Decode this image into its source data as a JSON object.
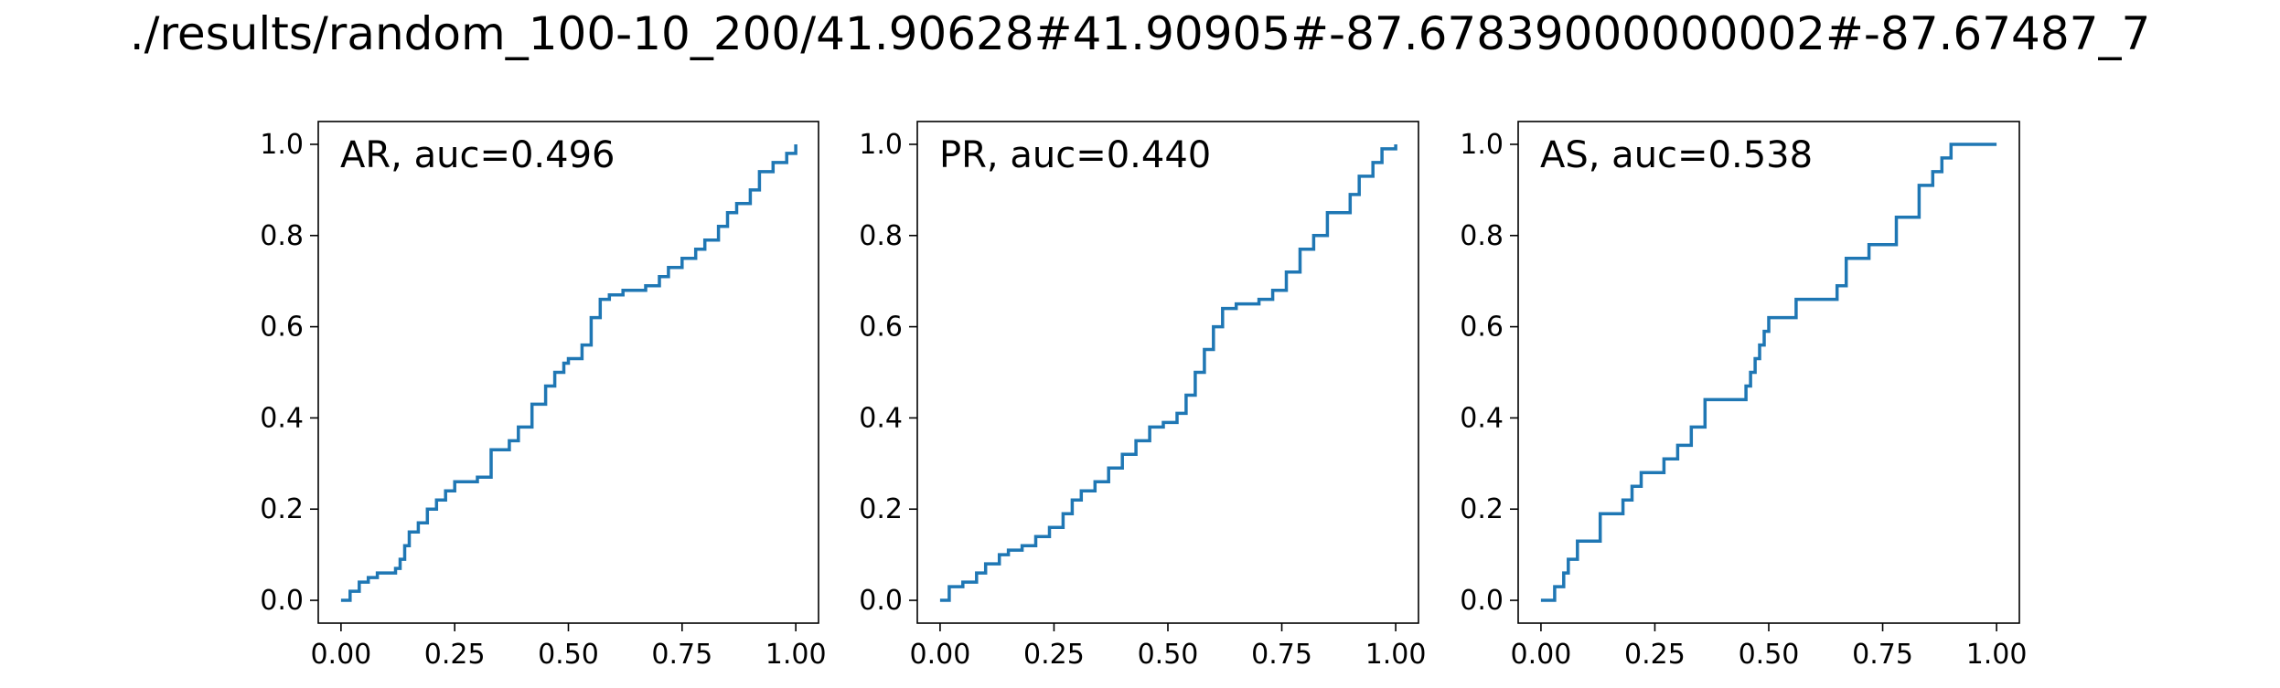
{
  "figure": {
    "title": "./results/random_100-10_200/41.90628#41.90905#-87.67839000000002#-87.67487_7"
  },
  "chart_data": [
    {
      "type": "line",
      "title": "AR, auc=0.496",
      "xlabel": "",
      "ylabel": "",
      "xlim": [
        -0.05,
        1.05
      ],
      "ylim": [
        -0.05,
        1.05
      ],
      "xticks": [
        "0.00",
        "0.25",
        "0.50",
        "0.75",
        "1.00"
      ],
      "yticks": [
        "0.0",
        "0.2",
        "0.4",
        "0.6",
        "0.8",
        "1.0"
      ],
      "grid": false,
      "color": "#1f77b4",
      "step": true,
      "series": [
        {
          "x": [
            0.0,
            0.02,
            0.04,
            0.06,
            0.08,
            0.1,
            0.12,
            0.13,
            0.14,
            0.15,
            0.17,
            0.19,
            0.21,
            0.23,
            0.25,
            0.3,
            0.33,
            0.37,
            0.39,
            0.42,
            0.45,
            0.47,
            0.49,
            0.5,
            0.53,
            0.55,
            0.57,
            0.59,
            0.62,
            0.67,
            0.7,
            0.72,
            0.75,
            0.78,
            0.8,
            0.83,
            0.85,
            0.87,
            0.9,
            0.92,
            0.95,
            0.98,
            1.0
          ],
          "y": [
            0.0,
            0.02,
            0.04,
            0.05,
            0.06,
            0.06,
            0.07,
            0.09,
            0.12,
            0.15,
            0.17,
            0.2,
            0.22,
            0.24,
            0.26,
            0.27,
            0.33,
            0.35,
            0.38,
            0.43,
            0.47,
            0.5,
            0.52,
            0.53,
            0.56,
            0.62,
            0.66,
            0.67,
            0.68,
            0.69,
            0.71,
            0.73,
            0.75,
            0.77,
            0.79,
            0.82,
            0.85,
            0.87,
            0.9,
            0.94,
            0.96,
            0.98,
            1.0
          ]
        }
      ]
    },
    {
      "type": "line",
      "title": "PR, auc=0.440",
      "xlabel": "",
      "ylabel": "",
      "xlim": [
        -0.05,
        1.05
      ],
      "ylim": [
        -0.05,
        1.05
      ],
      "xticks": [
        "0.00",
        "0.25",
        "0.50",
        "0.75",
        "1.00"
      ],
      "yticks": [
        "0.0",
        "0.2",
        "0.4",
        "0.6",
        "0.8",
        "1.0"
      ],
      "grid": false,
      "color": "#1f77b4",
      "step": true,
      "series": [
        {
          "x": [
            0.0,
            0.02,
            0.05,
            0.08,
            0.1,
            0.13,
            0.15,
            0.18,
            0.21,
            0.24,
            0.27,
            0.29,
            0.31,
            0.34,
            0.37,
            0.4,
            0.43,
            0.46,
            0.49,
            0.52,
            0.54,
            0.56,
            0.58,
            0.6,
            0.62,
            0.65,
            0.7,
            0.73,
            0.76,
            0.79,
            0.82,
            0.85,
            0.9,
            0.92,
            0.95,
            0.97,
            1.0
          ],
          "y": [
            0.0,
            0.03,
            0.04,
            0.06,
            0.08,
            0.1,
            0.11,
            0.12,
            0.14,
            0.16,
            0.19,
            0.22,
            0.24,
            0.26,
            0.29,
            0.32,
            0.35,
            0.38,
            0.39,
            0.41,
            0.45,
            0.5,
            0.55,
            0.6,
            0.64,
            0.65,
            0.66,
            0.68,
            0.72,
            0.77,
            0.8,
            0.85,
            0.89,
            0.93,
            0.96,
            0.99,
            1.0
          ]
        }
      ]
    },
    {
      "type": "line",
      "title": "AS, auc=0.538",
      "xlabel": "",
      "ylabel": "",
      "xlim": [
        -0.05,
        1.05
      ],
      "ylim": [
        -0.05,
        1.05
      ],
      "xticks": [
        "0.00",
        "0.25",
        "0.50",
        "0.75",
        "1.00"
      ],
      "yticks": [
        "0.0",
        "0.2",
        "0.4",
        "0.6",
        "0.8",
        "1.0"
      ],
      "grid": false,
      "color": "#1f77b4",
      "step": true,
      "series": [
        {
          "x": [
            0.0,
            0.03,
            0.05,
            0.06,
            0.08,
            0.13,
            0.18,
            0.2,
            0.22,
            0.27,
            0.3,
            0.33,
            0.36,
            0.45,
            0.46,
            0.47,
            0.48,
            0.49,
            0.5,
            0.53,
            0.56,
            0.65,
            0.67,
            0.72,
            0.78,
            0.83,
            0.86,
            0.88,
            0.9,
            1.0
          ],
          "y": [
            0.0,
            0.03,
            0.06,
            0.09,
            0.13,
            0.19,
            0.22,
            0.25,
            0.28,
            0.31,
            0.34,
            0.38,
            0.44,
            0.47,
            0.5,
            0.53,
            0.56,
            0.59,
            0.62,
            0.62,
            0.66,
            0.69,
            0.75,
            0.78,
            0.84,
            0.91,
            0.94,
            0.97,
            1.0,
            1.0
          ]
        }
      ]
    }
  ]
}
